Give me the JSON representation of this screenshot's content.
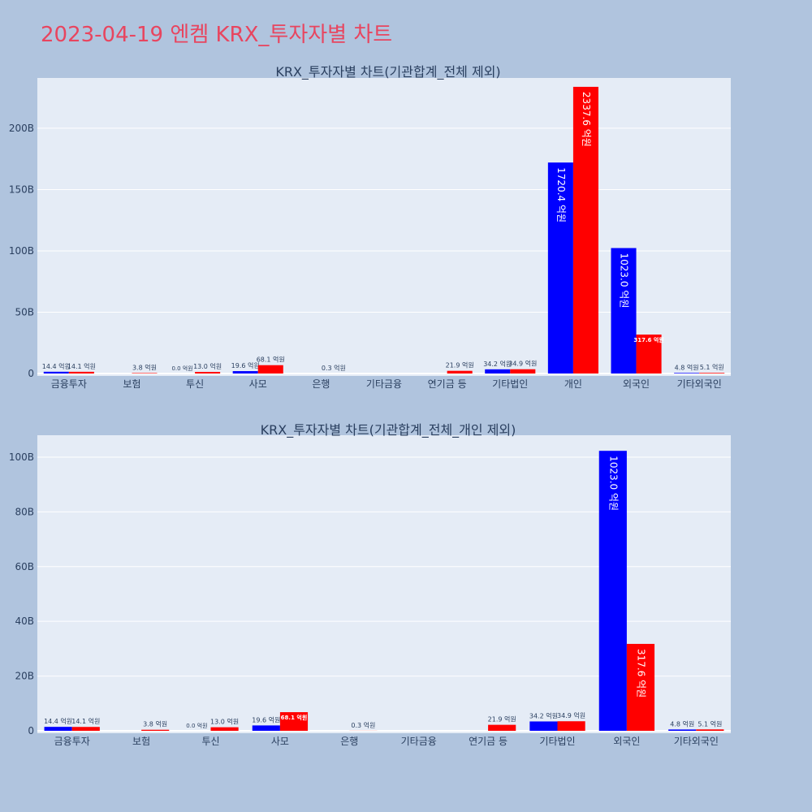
{
  "page": {
    "title": "2023-04-19 엔켐 KRX_투자자별 차트"
  },
  "colors": {
    "buy": "#0000ff",
    "sell": "#ff0000",
    "title": "#e8455f",
    "plot_bg": "#e5ecf6",
    "page_bg": "#b0c4de"
  },
  "chart_data": [
    {
      "type": "bar",
      "title": "KRX_투자자별 차트(기관합계_전체 제외)",
      "categories": [
        "금융투자",
        "보험",
        "투신",
        "사모",
        "은행",
        "기타금융",
        "연기금 등",
        "기타법인",
        "개인",
        "외국인",
        "기타외국인"
      ],
      "series": [
        {
          "color": "#0000ff",
          "values": [
            1.44,
            0,
            0.0,
            1.96,
            0,
            0,
            0,
            3.42,
            172.04,
            102.3,
            0.48
          ],
          "labels": [
            "14.4 억원",
            "",
            "0.0 억원",
            "19.6 억원",
            "",
            "",
            "",
            "34.2 억원",
            "1720.4 억원",
            "1023.0 억원",
            "4.8 억원"
          ]
        },
        {
          "color": "#ff0000",
          "values": [
            1.41,
            0.38,
            1.3,
            6.81,
            0.03,
            0,
            2.19,
            3.49,
            233.76,
            31.76,
            0.51
          ],
          "labels": [
            "14.1 억원",
            "3.8 억원",
            "13.0 억원",
            "68.1 억원",
            "0.3 억원",
            "",
            "21.9 억원",
            "34.9 억원",
            "2337.6 억원",
            "317.6 억원",
            "5.1 억원"
          ]
        }
      ],
      "ylim": [
        0,
        241
      ],
      "yticks": [
        0,
        50,
        100,
        150,
        200
      ],
      "ytick_labels": [
        "0",
        "50B",
        "100B",
        "150B",
        "200B"
      ],
      "grid": true
    },
    {
      "type": "bar",
      "title": "KRX_투자자별 차트(기관합계_전체_개인 제외)",
      "categories": [
        "금융투자",
        "보험",
        "투신",
        "사모",
        "은행",
        "기타금융",
        "연기금 등",
        "기타법인",
        "외국인",
        "기타외국인"
      ],
      "series": [
        {
          "color": "#0000ff",
          "values": [
            1.44,
            0,
            0.0,
            1.96,
            0,
            0,
            0,
            3.42,
            102.3,
            0.48
          ],
          "labels": [
            "14.4 억원",
            "",
            "0.0 억원",
            "19.6 억원",
            "",
            "",
            "",
            "34.2 억원",
            "1023.0 억원",
            "4.8 억원"
          ]
        },
        {
          "color": "#ff0000",
          "values": [
            1.41,
            0.38,
            1.3,
            6.81,
            0.03,
            0,
            2.19,
            3.49,
            31.76,
            0.51
          ],
          "labels": [
            "14.1 억원",
            "3.8 억원",
            "13.0 억원",
            "68.1 억원",
            "0.3 억원",
            "",
            "21.9 억원",
            "34.9 억원",
            "317.6 억원",
            "5.1 억원"
          ]
        }
      ],
      "ylim": [
        0,
        108
      ],
      "yticks": [
        0,
        20,
        40,
        60,
        80,
        100
      ],
      "ytick_labels": [
        "0",
        "20B",
        "40B",
        "60B",
        "80B",
        "100B"
      ],
      "grid": true
    }
  ]
}
